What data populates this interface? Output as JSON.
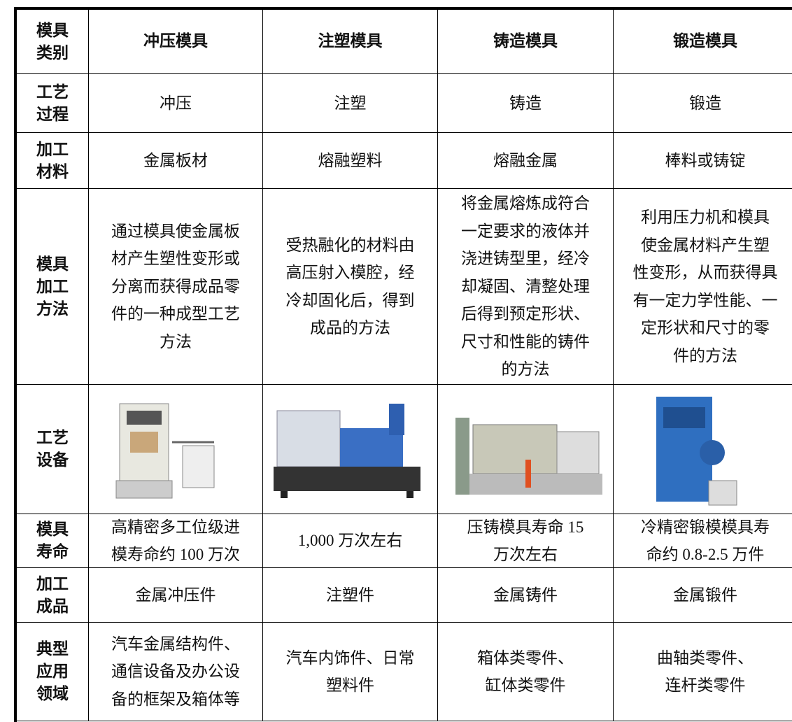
{
  "header": {
    "label": [
      "模具",
      "类别"
    ],
    "columns": [
      "冲压模具",
      "注塑模具",
      "铸造模具",
      "锻造模具"
    ]
  },
  "rows": [
    {
      "label": [
        "工艺",
        "过程"
      ],
      "cells": [
        [
          "冲压"
        ],
        [
          "注塑"
        ],
        [
          "铸造"
        ],
        [
          "锻造"
        ]
      ]
    },
    {
      "label": [
        "加工",
        "材料"
      ],
      "cells": [
        [
          "金属板材"
        ],
        [
          "熔融塑料"
        ],
        [
          "熔融金属"
        ],
        [
          "棒料或铸锭"
        ]
      ]
    },
    {
      "label": [
        "模具",
        "加工",
        "方法"
      ],
      "cells": [
        [
          "通过模具使金属板",
          "材产生塑性变形或",
          "分离而获得成品零",
          "件的一种成型工艺",
          "方法"
        ],
        [
          "受热融化的材料由",
          "高压射入模腔，经",
          "冷却固化后，得到",
          "成品的方法"
        ],
        [
          "将金属熔炼成符合",
          "一定要求的液体并",
          "浇进铸型里，经冷",
          "却凝固、清整处理",
          "后得到预定形状、",
          "尺寸和性能的铸件",
          "的方法"
        ],
        [
          "利用压力机和模具",
          "使金属材料产生塑",
          "性变形，从而获得具",
          "有一定力学性能、一",
          "定形状和尺寸的零",
          "件的方法"
        ]
      ]
    },
    {
      "label": [
        "工艺",
        "设备"
      ]
    },
    {
      "label": [
        "模具",
        "寿命"
      ],
      "cells": [
        [
          "高精密多工位级进",
          "模寿命约 100 万次"
        ],
        [
          "1,000 万次左右"
        ],
        [
          "压铸模具寿命 15",
          "万次左右"
        ],
        [
          "冷精密锻模模具寿",
          "命约 0.8-2.5 万件"
        ]
      ]
    },
    {
      "label": [
        "加工",
        "成品"
      ],
      "cells": [
        [
          "金属冲压件"
        ],
        [
          "注塑件"
        ],
        [
          "金属铸件"
        ],
        [
          "金属锻件"
        ]
      ]
    },
    {
      "label": [
        "典型",
        "应用",
        "领域"
      ],
      "cells": [
        [
          "汽车金属结构件、",
          "通信设备及办公设",
          "备的框架及箱体等"
        ],
        [
          "汽车内饰件、日常",
          "塑料件"
        ],
        [
          "箱体类零件、",
          "缸体类零件"
        ],
        [
          "曲轴类零件、",
          "连杆类零件"
        ]
      ]
    }
  ]
}
